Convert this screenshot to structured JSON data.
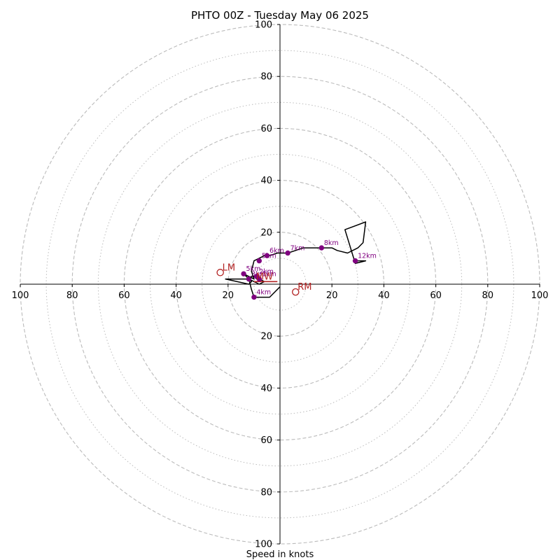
{
  "chart_data": {
    "type": "hodograph",
    "title": "PHTO 00Z - Tuesday May 06 2025",
    "xlabel": "Speed in knots",
    "ylabel": "",
    "range": [
      -100,
      100
    ],
    "rings_major": [
      20,
      40,
      60,
      80,
      100
    ],
    "rings_minor": [
      10,
      30,
      50,
      70,
      90
    ],
    "x_tick_labels": [
      "100",
      "80",
      "60",
      "40",
      "20",
      "20",
      "40",
      "60",
      "80",
      "100"
    ],
    "y_tick_labels": [
      "100",
      "80",
      "60",
      "40",
      "20",
      "20",
      "40",
      "60",
      "80",
      "100"
    ],
    "x_tick_values": [
      -100,
      -80,
      -60,
      -40,
      -20,
      20,
      40,
      60,
      80,
      100
    ],
    "y_tick_values": [
      100,
      80,
      60,
      40,
      20,
      -20,
      -40,
      -60,
      -80,
      -100
    ],
    "grid": true,
    "colors": {
      "trace": "#000000",
      "height_marker": "#800080",
      "storm_motion": "#b22222",
      "grid": "#bbbbbb"
    },
    "trace": [
      [
        0,
        -1
      ],
      [
        -4,
        -5
      ],
      [
        -10,
        -5
      ],
      [
        -11,
        -2
      ],
      [
        -12,
        2
      ],
      [
        -21,
        2
      ],
      [
        -12,
        0
      ],
      [
        -11,
        1
      ],
      [
        -12,
        2
      ],
      [
        -11,
        3
      ],
      [
        -10,
        3
      ],
      [
        -9,
        2
      ],
      [
        -8,
        2
      ],
      [
        -6,
        1
      ],
      [
        -8,
        0
      ],
      [
        -10,
        1
      ],
      [
        -12,
        2
      ],
      [
        -14,
        4
      ],
      [
        -12,
        3
      ],
      [
        -10,
        2
      ],
      [
        -11,
        5
      ],
      [
        -10,
        9
      ],
      [
        -8,
        10
      ],
      [
        -6,
        11
      ],
      [
        -4,
        11
      ],
      [
        -1,
        12
      ],
      [
        3,
        12
      ],
      [
        6,
        13
      ],
      [
        9,
        14
      ],
      [
        12,
        14
      ],
      [
        16,
        14
      ],
      [
        20,
        14
      ],
      [
        22,
        13
      ],
      [
        26,
        12
      ],
      [
        30,
        14
      ],
      [
        32,
        16
      ],
      [
        33,
        24
      ],
      [
        25,
        21
      ],
      [
        29,
        8
      ],
      [
        33,
        9
      ],
      [
        28,
        9
      ]
    ],
    "height_markers": [
      {
        "label": "1km",
        "u": -8,
        "v": 2
      },
      {
        "label": "2km",
        "u": -9,
        "v": 3
      },
      {
        "label": "3km",
        "u": -12,
        "v": 2
      },
      {
        "label": "4km",
        "u": -10,
        "v": -5
      },
      {
        "label": "5km",
        "u": -14,
        "v": 4
      },
      {
        "label": "5km",
        "u": -8,
        "v": 9
      },
      {
        "label": "6km",
        "u": -5,
        "v": 11
      },
      {
        "label": "7km",
        "u": 3,
        "v": 12
      },
      {
        "label": "8km",
        "u": 16,
        "v": 14
      },
      {
        "label": "12km",
        "u": 29,
        "v": 9
      }
    ],
    "storm_motion": [
      {
        "label": "LM",
        "u": -23,
        "v": 4.5
      },
      {
        "label": "RM",
        "u": 6,
        "v": -3
      },
      {
        "label": "MW",
        "u": -10,
        "v": 1
      }
    ],
    "mean_wind_vector": {
      "from": [
        -10,
        1
      ],
      "to": [
        -1,
        1
      ]
    }
  }
}
